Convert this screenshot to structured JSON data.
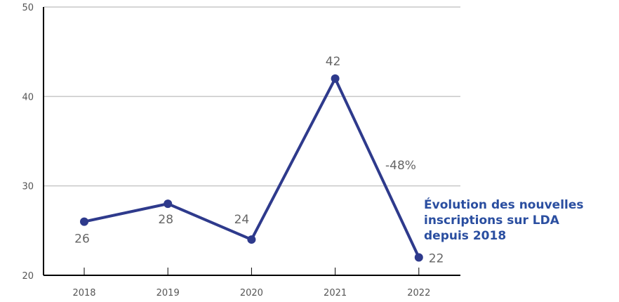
{
  "chart_data": {
    "type": "line",
    "categories": [
      "2018",
      "2019",
      "2020",
      "2021",
      "2022"
    ],
    "series": [
      {
        "values": [
          26,
          28,
          24,
          42,
          22
        ]
      }
    ],
    "data_labels": [
      "26",
      "28",
      "24",
      "42",
      "22"
    ],
    "y_ticks": [
      "20",
      "30",
      "40",
      "50"
    ],
    "ylim": [
      20,
      50
    ],
    "grid": true,
    "annotation": "-48%",
    "title_lines": [
      "Évolution des nouvelles",
      "inscriptions sur LDA",
      "depuis 2018"
    ],
    "colors": {
      "series": "#2e3a8c",
      "title": "#2a4ea0",
      "grid": "#c8c8c8",
      "label": "#666666"
    }
  }
}
